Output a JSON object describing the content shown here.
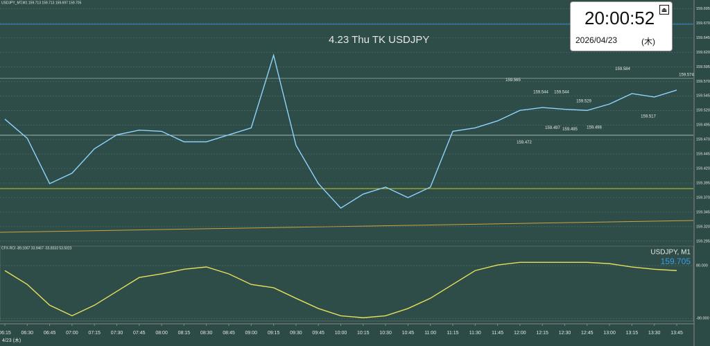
{
  "clock": {
    "time": "20:00:52",
    "date": "2026/04/23",
    "weekday": "(木)"
  },
  "chart_data": [
    {
      "type": "line",
      "title": "4.23 Thu TK USDJPY",
      "subtitle": "USDJPY_MT,M1  159.713 159.713 159.697 159.705",
      "date_label": "4/23 (木)",
      "categories": [
        "06:15",
        "06:30",
        "06:45",
        "07:00",
        "07:15",
        "07:30",
        "07:45",
        "08:00",
        "08:15",
        "08:30",
        "08:45",
        "09:00",
        "09:15",
        "09:30",
        "09:45",
        "10:00",
        "10:15",
        "10:30",
        "10:45",
        "11:00",
        "11:15",
        "11:30",
        "11:45",
        "12:00",
        "12:15",
        "12:30",
        "12:45",
        "13:00",
        "13:15",
        "13:30",
        "13:45"
      ],
      "values": [
        159.505,
        159.472,
        159.394,
        159.412,
        159.454,
        159.478,
        159.486,
        159.484,
        159.466,
        159.466,
        159.478,
        159.49,
        159.615,
        159.46,
        159.394,
        159.352,
        159.376,
        159.388,
        159.37,
        159.388,
        159.484,
        159.49,
        159.502,
        159.52,
        159.525,
        159.522,
        159.52,
        159.531,
        159.549,
        159.543,
        159.555
      ],
      "color": "#8fd3ff",
      "annotations": [
        159.565,
        159.544,
        159.544,
        159.529,
        159.584,
        159.574,
        159.472,
        159.497,
        159.495,
        159.498,
        159.517
      ],
      "ylim": [
        159.29,
        159.71
      ],
      "yticks": [
        159.295,
        {
          "value": 159.32,
          "label": "159.320"
        },
        159.345,
        {
          "value": 159.37,
          "label": "159.370"
        },
        159.395,
        {
          "value": 159.42,
          "label": "159.420"
        },
        159.445,
        {
          "value": 159.47,
          "label": "159.470"
        },
        159.495,
        {
          "value": 159.52,
          "label": "159.520"
        },
        159.545,
        {
          "value": 159.57,
          "label": "159.570"
        },
        159.595,
        {
          "value": 159.62,
          "label": "159.620"
        },
        159.645,
        {
          "value": 159.67,
          "label": "159.670"
        },
        159.695
      ],
      "grid": true
    },
    {
      "type": "line",
      "title": "CFX-RCI -89.1667 33.9467 -55.8333 53.5023",
      "annotations": [
        "USDJPY, M1",
        "159.705"
      ],
      "values": [
        65,
        23,
        -40,
        -72,
        -40,
        2,
        44,
        55,
        69,
        76,
        55,
        23,
        13,
        -19,
        -50,
        -72,
        -78,
        -72,
        -50,
        -19,
        23,
        65,
        82,
        90,
        90,
        90,
        90,
        86,
        76,
        69,
        65
      ],
      "color": "#e6e05a",
      "ylim": [
        -88,
        137
      ],
      "yticks": [
        {
          "value": 80,
          "label": "80.000"
        },
        {
          "value": -80,
          "label": "-80.000"
        }
      ],
      "grid": true
    }
  ]
}
